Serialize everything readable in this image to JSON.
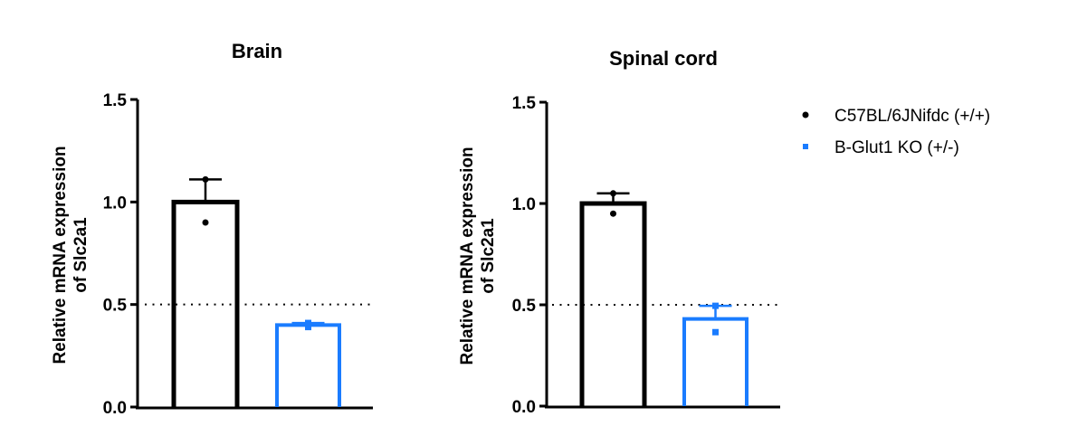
{
  "chart_data": [
    {
      "type": "bar",
      "title": "Brain",
      "ylabel": [
        "Relative mRNA expression",
        "of Slc2a1"
      ],
      "xlabel": "",
      "ylim": [
        0,
        1.5
      ],
      "yticks": [
        "0.0",
        "0.5",
        "1.0",
        "1.5"
      ],
      "reference_line": 0.5,
      "categories": [
        "C57BL/6JNifdc (+/+)",
        "B-Glut1 KO (+/-)"
      ],
      "values": [
        1.0,
        0.4
      ],
      "error_upper": [
        0.11,
        0.01
      ],
      "points": [
        [
          1.11,
          0.9
        ],
        [
          0.41,
          0.39
        ]
      ]
    },
    {
      "type": "bar",
      "title": "Spinal cord",
      "ylabel": [
        "Relative mRNA expression",
        "of Slc2a1"
      ],
      "xlabel": "",
      "ylim": [
        0,
        1.5
      ],
      "yticks": [
        "0.0",
        "0.5",
        "1.0",
        "1.5"
      ],
      "reference_line": 0.5,
      "categories": [
        "C57BL/6JNifdc (+/+)",
        "B-Glut1 KO (+/-)"
      ],
      "values": [
        1.0,
        0.43
      ],
      "error_upper": [
        0.05,
        0.065
      ],
      "points": [
        [
          1.05,
          0.95
        ],
        [
          0.495,
          0.365
        ]
      ]
    }
  ],
  "legend": {
    "placement": "right",
    "items": [
      {
        "label": "C57BL/6JNifdc (+/+)",
        "color": "#000000",
        "marker": "circle"
      },
      {
        "label": "B-Glut1 KO (+/-)",
        "color": "#1a7cff",
        "marker": "square"
      }
    ]
  }
}
